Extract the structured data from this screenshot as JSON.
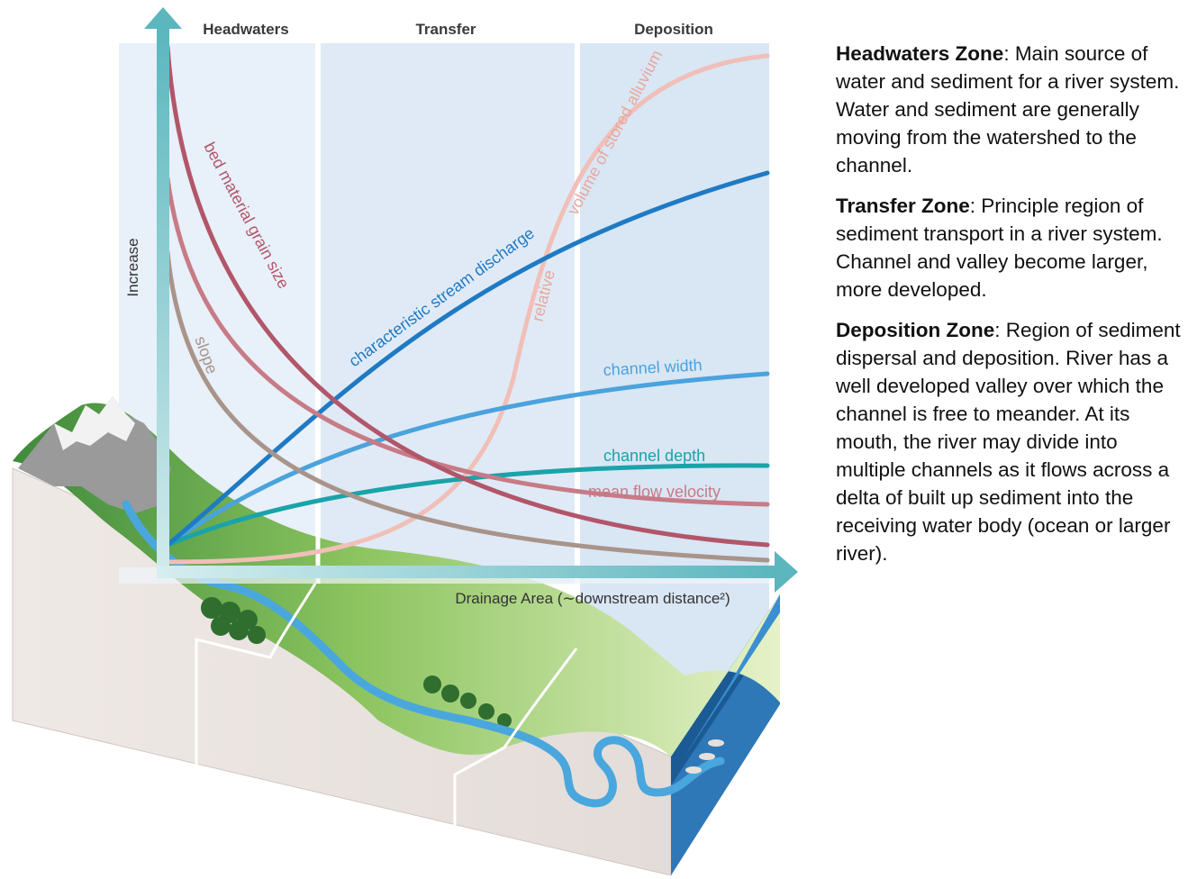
{
  "zones": {
    "headwaters": "Headwaters",
    "transfer": "Transfer",
    "deposition": "Deposition"
  },
  "axes": {
    "y_label": "Increase",
    "x_label": "Drainage Area (∼downstream distance²)"
  },
  "curves": {
    "grain_size": "bed material grain size",
    "slope": "slope",
    "discharge": "characteristic stream discharge",
    "alluvium_a": "relative",
    "alluvium_b": "volume of stored alluvium",
    "width": "channel width",
    "depth": "channel depth",
    "velocity": "mean flow velocity"
  },
  "colors": {
    "grain_size": "#b2566a",
    "slope": "#a8948a",
    "discharge": "#1f7ac4",
    "alluvium": "#f0bfb8",
    "width": "#4aa3dc",
    "depth": "#1aa3a8",
    "velocity": "#c77b86",
    "axis": "#5bb6be"
  },
  "descriptions": [
    {
      "title": "Headwaters Zone",
      "text": ": Main source of water and sediment for a river system.  Water and sediment are generally moving from the watershed to the channel."
    },
    {
      "title": "Transfer Zone",
      "text": ": Principle region of sediment transport in a river system.  Channel and valley become larger, more developed."
    },
    {
      "title": "Deposition Zone",
      "text": ": Region of sediment dispersal and deposition.  River has a well developed valley over which the channel is free to meander.  At its mouth, the river may divide into multiple channels as it flows across a delta of built up sediment into the receiving water body (ocean or larger river)."
    }
  ]
}
